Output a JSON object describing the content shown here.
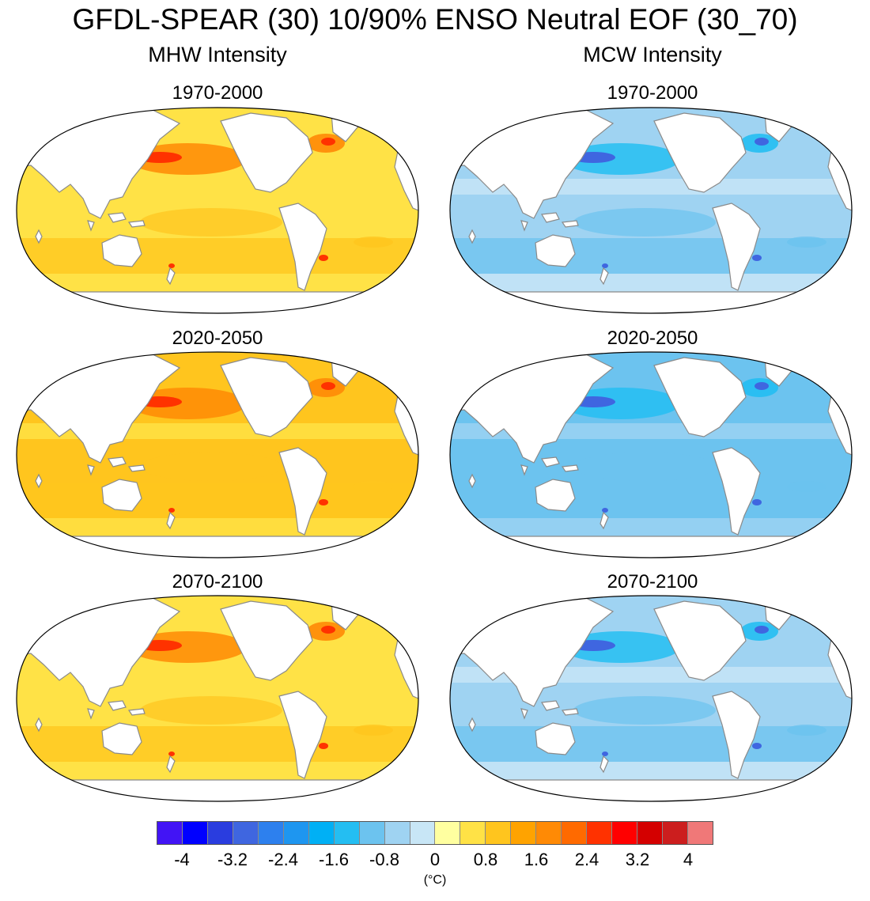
{
  "title": "GFDL-SPEAR (30) 10/90% ENSO Neutral EOF (30_70)",
  "columns": [
    {
      "label": "MHW Intensity",
      "panels": [
        "1970-2000",
        "2020-2050",
        "2070-2100"
      ]
    },
    {
      "label": "MCW Intensity",
      "panels": [
        "1970-2000",
        "2020-2050",
        "2070-2100"
      ]
    }
  ],
  "colorbar": {
    "colors": [
      "#4214f5",
      "#0000ff",
      "#2a3ddf",
      "#3f66e0",
      "#2d80ee",
      "#1e96f0",
      "#00b0f5",
      "#24bef2",
      "#6cc3ef",
      "#9fd3f2",
      "#c8e6f6",
      "#ffffa0",
      "#ffe246",
      "#ffc51e",
      "#ffa300",
      "#ff8a05",
      "#ff6a00",
      "#ff3200",
      "#ff0000",
      "#d40000",
      "#cc1e1e",
      "#f07878"
    ],
    "tick_labels": [
      "-4",
      "-3.2",
      "-2.4",
      "-1.6",
      "-0.8",
      "0",
      "0.8",
      "1.6",
      "2.4",
      "3.2",
      "4"
    ],
    "units": "(°C)"
  }
}
